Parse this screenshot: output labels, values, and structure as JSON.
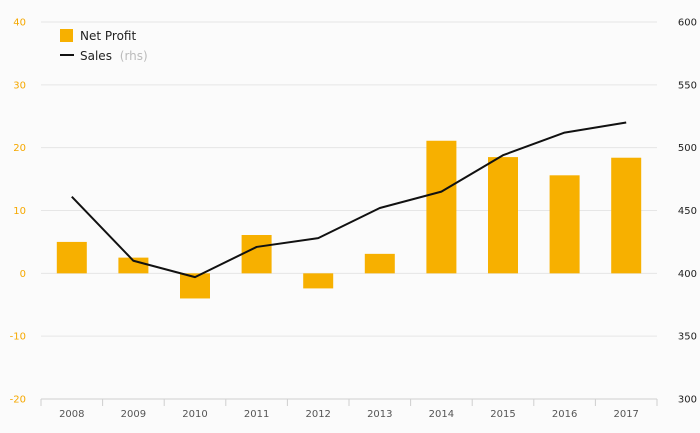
{
  "chart_data": {
    "type": "bar",
    "categories": [
      "2008",
      "2009",
      "2010",
      "2011",
      "2012",
      "2013",
      "2014",
      "2015",
      "2016",
      "2017"
    ],
    "series": [
      {
        "name": "Net Profit",
        "type": "bar",
        "axis": "left",
        "color": "#f7b000",
        "values": [
          5.0,
          2.5,
          -4.0,
          6.1,
          -2.4,
          3.1,
          21.1,
          18.5,
          15.6,
          18.4
        ]
      },
      {
        "name": "Sales",
        "name_suffix": "(rhs)",
        "type": "line",
        "axis": "right",
        "color": "#111111",
        "values": [
          461,
          410,
          397,
          421,
          428,
          452,
          465,
          494,
          512,
          520
        ]
      }
    ],
    "y_left": {
      "min": -20,
      "max": 40,
      "ticks": [
        "40",
        "30",
        "20",
        "10",
        "0",
        "-10",
        "-20"
      ],
      "color": "#f5a800"
    },
    "y_right": {
      "min": 300,
      "max": 600,
      "ticks": [
        "600",
        "550",
        "500",
        "450",
        "400",
        "350",
        "300"
      ]
    },
    "grid": true,
    "legend": "top-left"
  }
}
